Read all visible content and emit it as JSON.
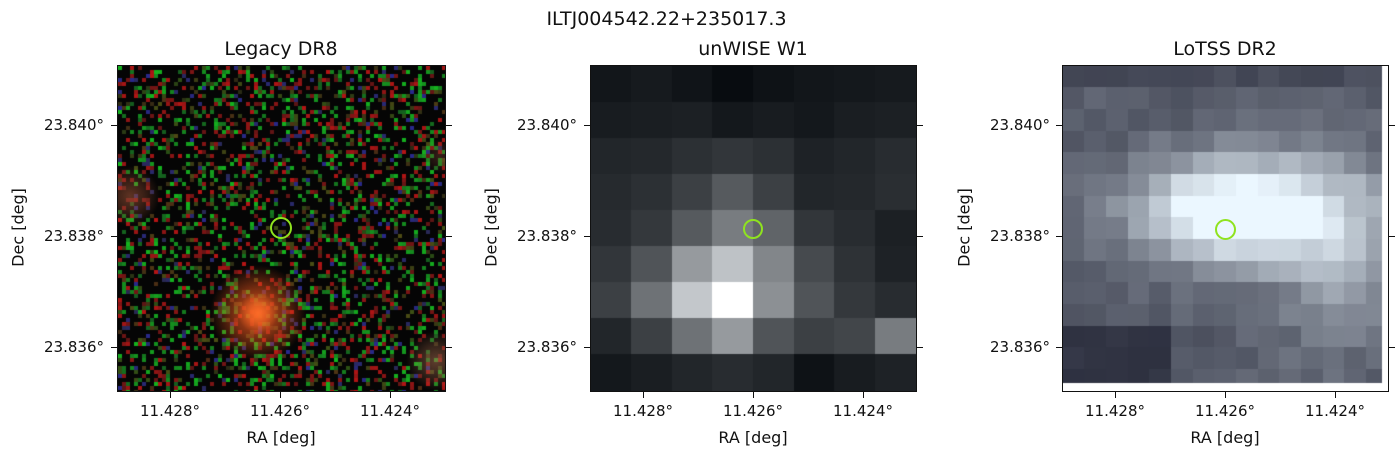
{
  "figure": {
    "title": "ILTJ004542.22+235017.3"
  },
  "axes": {
    "xlabel": "RA [deg]",
    "ylabel": "Dec [deg]",
    "yticks": [
      "23.840°",
      "23.838°",
      "23.836°"
    ],
    "xticks": [
      "11.428°",
      "11.426°",
      "11.424°"
    ]
  },
  "panels": [
    {
      "title": "Legacy DR8",
      "image_kind": "optical rgb noise with orange galaxy"
    },
    {
      "title": "unWISE W1",
      "image_kind": "grayscale infrared pixel map"
    },
    {
      "title": "LoTSS DR2",
      "image_kind": "bluish-gray radio pixel map"
    }
  ],
  "colors": {
    "marker": "#8fe31f",
    "galaxy": "#e0531a"
  }
}
